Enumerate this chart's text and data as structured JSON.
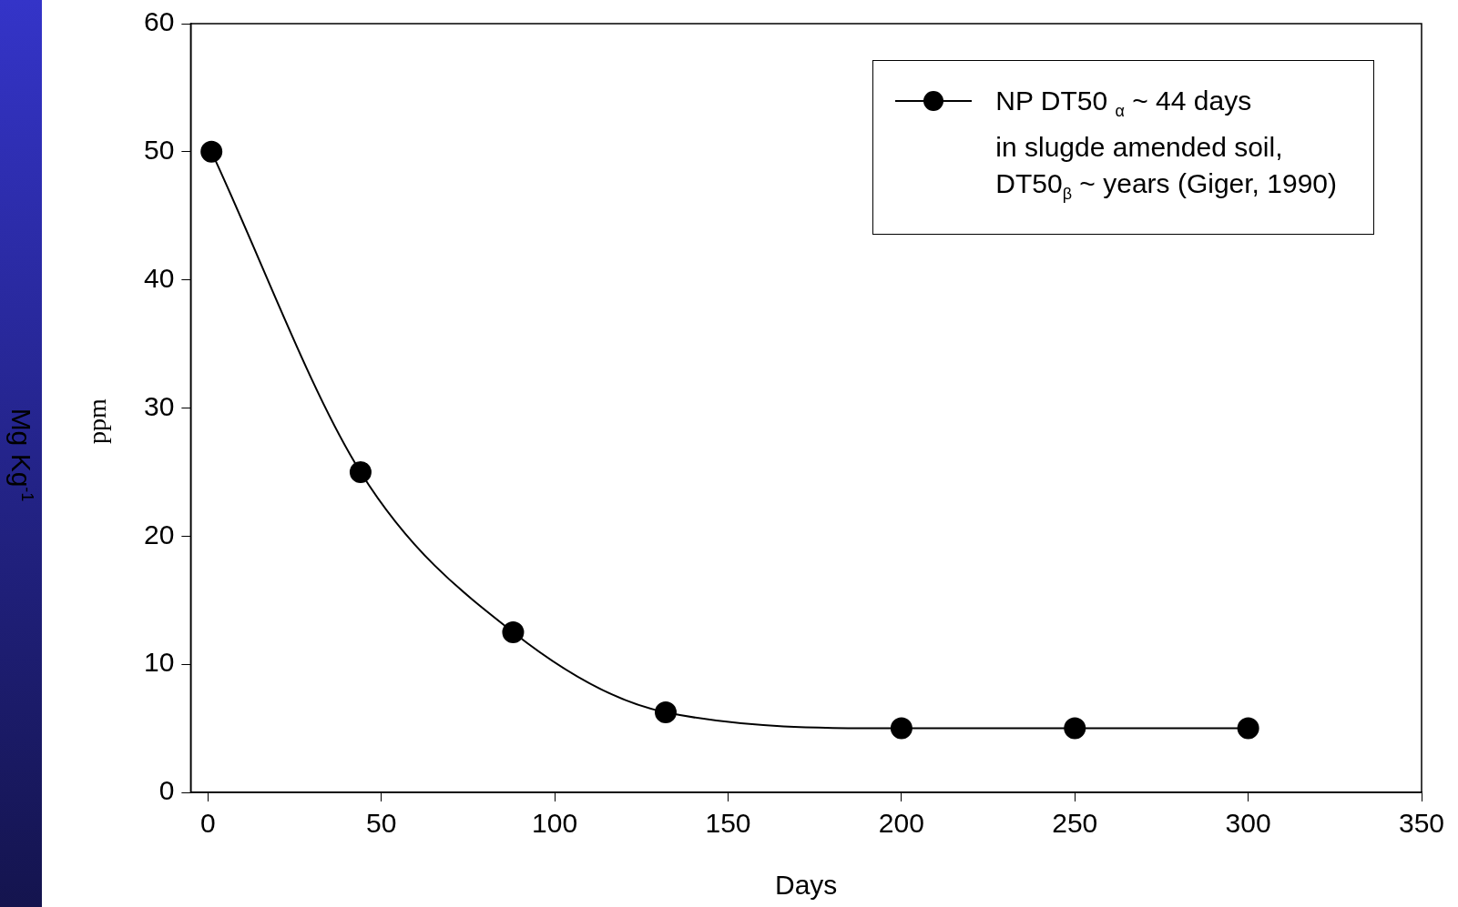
{
  "chart_data": {
    "type": "line",
    "xlabel": "Days",
    "ylabel": "ppm",
    "annotations": [
      "Mg Kg$^{-1}$"
    ],
    "x": [
      1,
      44,
      88,
      132,
      200,
      250,
      300
    ],
    "series": [
      {
        "name": "NP DT50 $_{α}$ ~ 44 days\nin slugde amended soil,\nDT50$_{β}$ ~ years (Giger, 1990)",
        "color": "#000000",
        "values": [
          50,
          25,
          12.5,
          6.25,
          5,
          5,
          5
        ]
      }
    ],
    "xlim": [
      -5,
      350
    ],
    "xticks": [
      0,
      50,
      100,
      150,
      200,
      250,
      300,
      350
    ],
    "ylim": [
      0,
      60
    ],
    "yticks": [
      0,
      10,
      20,
      30,
      40,
      50,
      60
    ],
    "grid": false,
    "legend": "top right",
    "marker": "circle",
    "line_style": "solid"
  }
}
